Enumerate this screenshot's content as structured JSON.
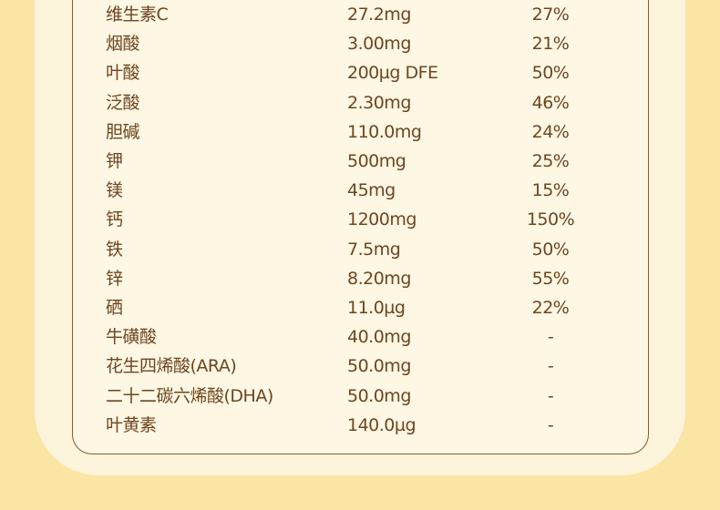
{
  "rows": [
    {
      "name": "维生素C",
      "amount": "27.2mg",
      "nrv": "27%"
    },
    {
      "name": "烟酸",
      "amount": "3.00mg",
      "nrv": "21%"
    },
    {
      "name": "叶酸",
      "amount": "200µg DFE",
      "nrv": "50%"
    },
    {
      "name": "泛酸",
      "amount": "2.30mg",
      "nrv": "46%"
    },
    {
      "name": "胆碱",
      "amount": "110.0mg",
      "nrv": "24%"
    },
    {
      "name": "钾",
      "amount": "500mg",
      "nrv": "25%"
    },
    {
      "name": "镁",
      "amount": "45mg",
      "nrv": "15%"
    },
    {
      "name": "钙",
      "amount": "1200mg",
      "nrv": "150%"
    },
    {
      "name": "铁",
      "amount": "7.5mg",
      "nrv": "50%"
    },
    {
      "name": "锌",
      "amount": "8.20mg",
      "nrv": "55%"
    },
    {
      "name": "硒",
      "amount": "11.0µg",
      "nrv": "22%"
    },
    {
      "name": "牛磺酸",
      "amount": "40.0mg",
      "nrv": "-"
    },
    {
      "name": "花生四烯酸(ARA)",
      "amount": "50.0mg",
      "nrv": "-"
    },
    {
      "name": "二十二碳六烯酸(DHA)",
      "amount": "50.0mg",
      "nrv": "-"
    },
    {
      "name": "叶黄素",
      "amount": "140.0µg",
      "nrv": "-"
    }
  ]
}
